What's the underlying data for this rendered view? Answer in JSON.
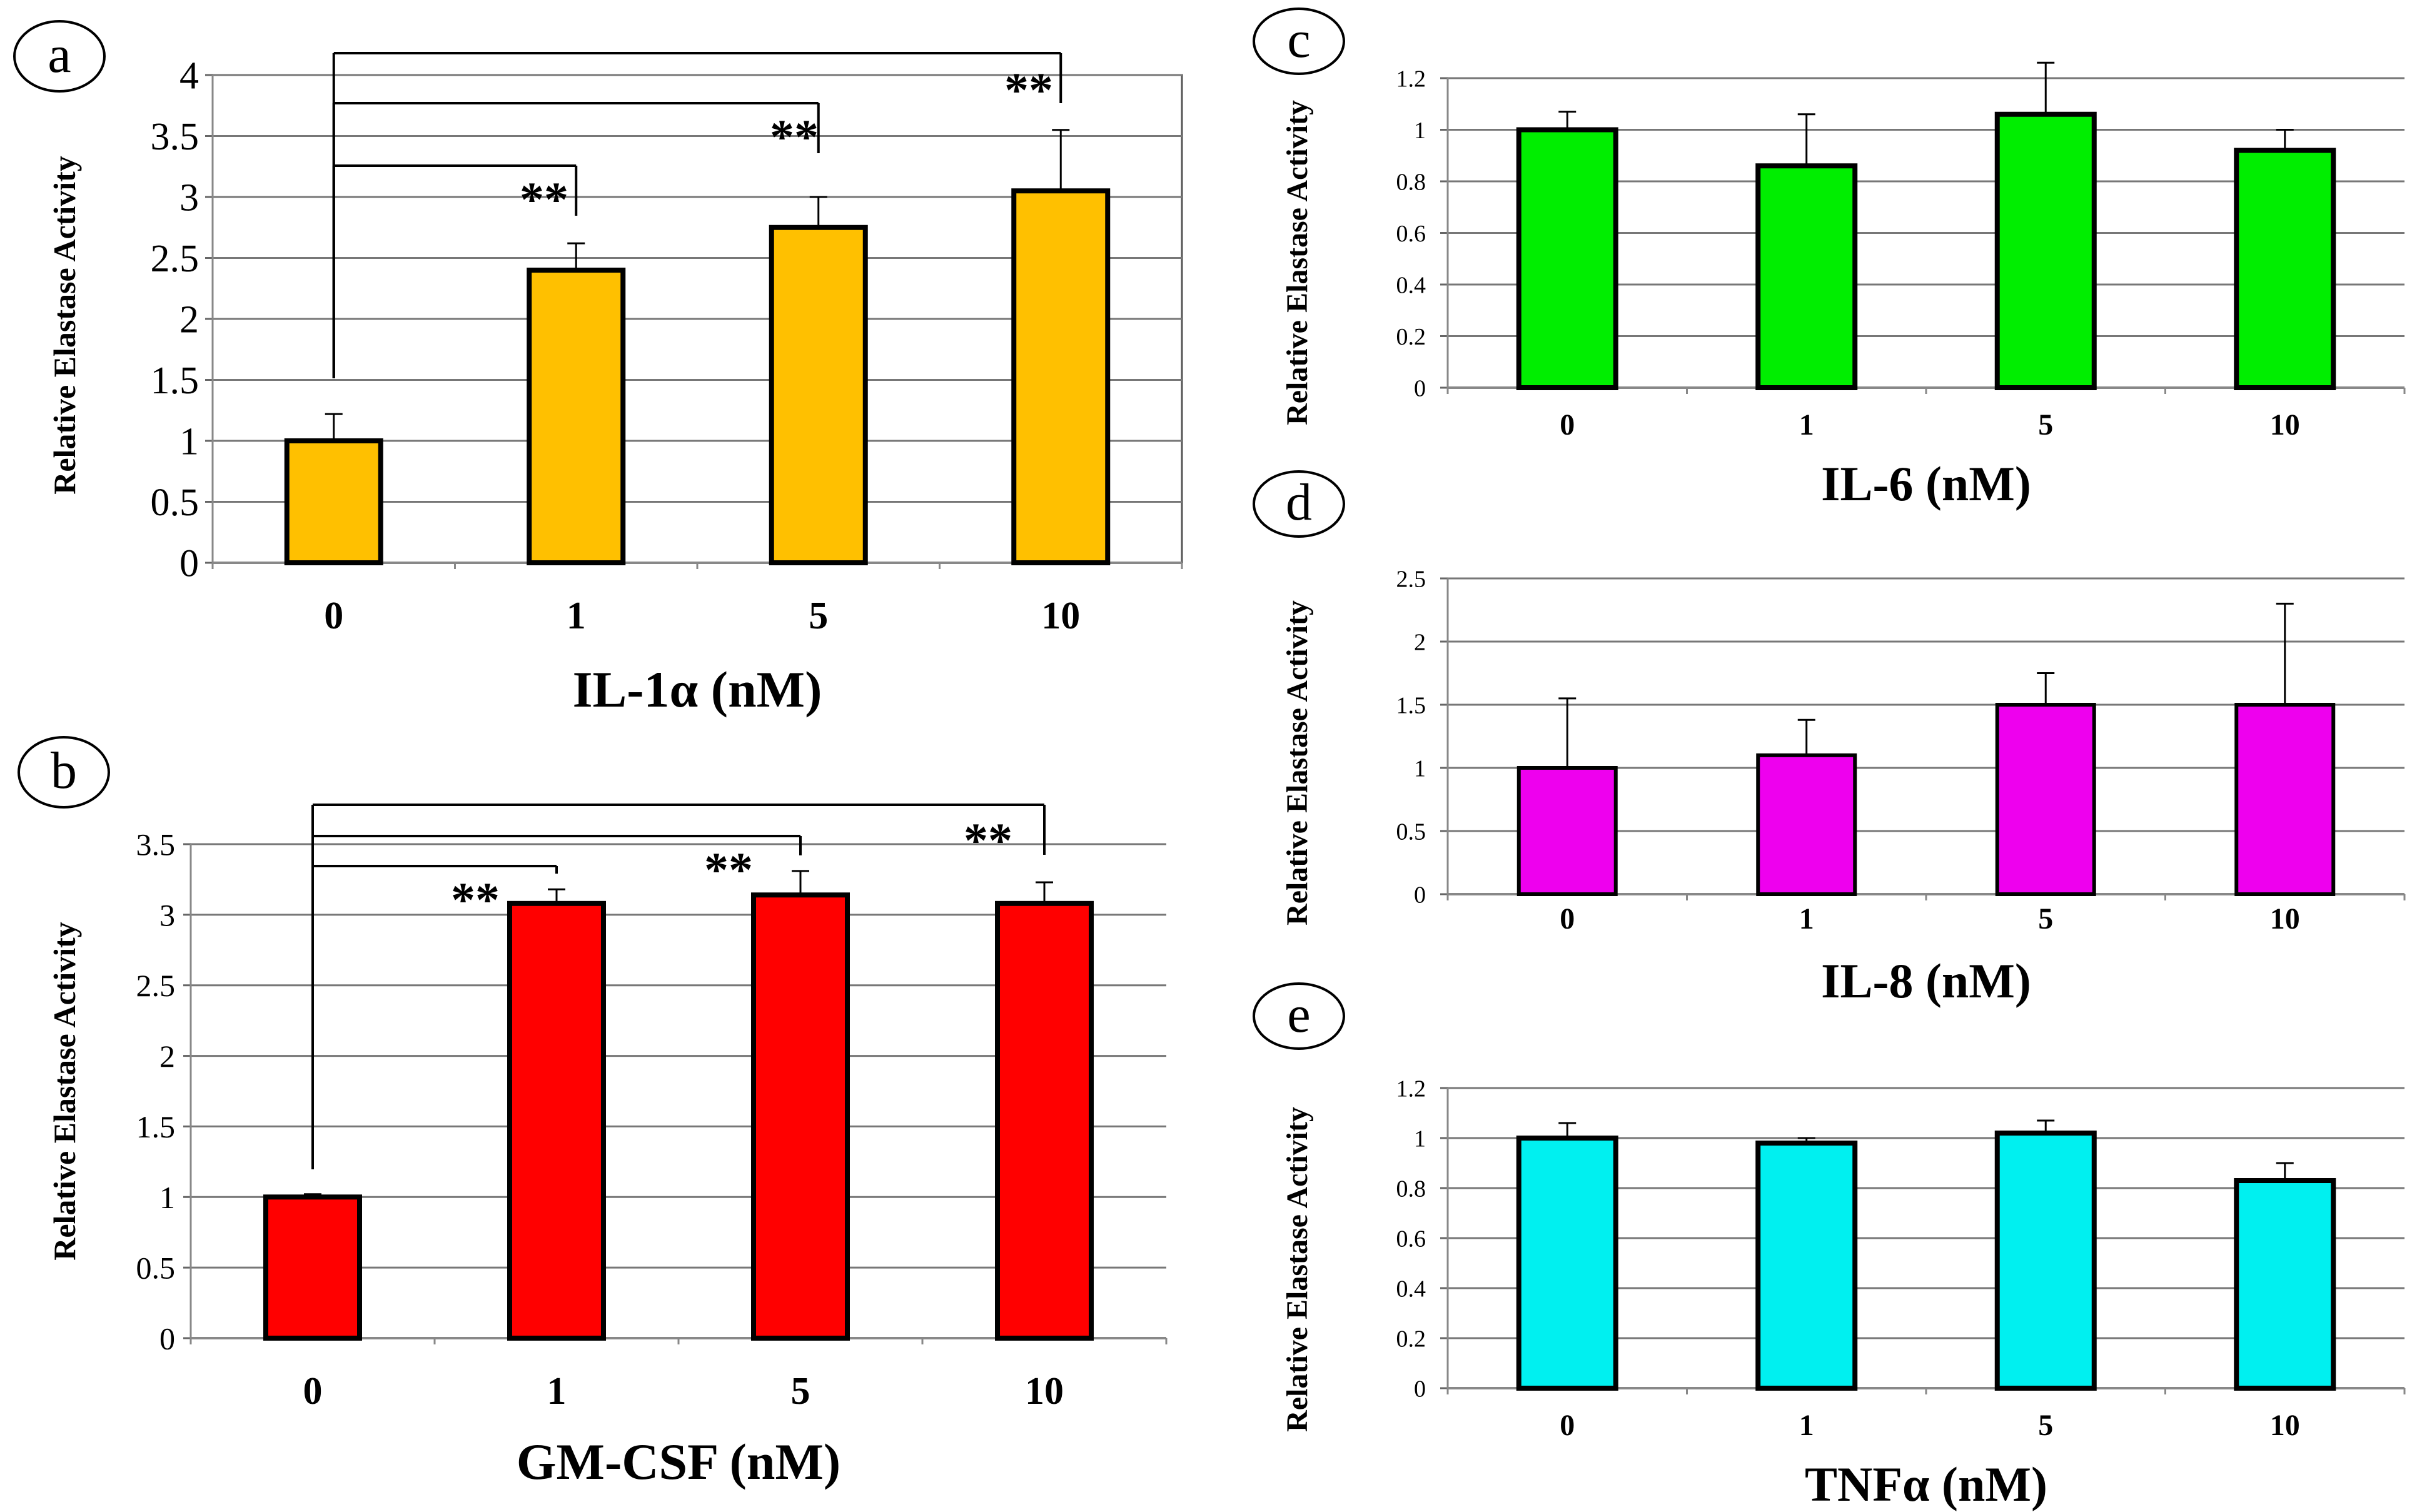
{
  "chart_data": [
    {
      "type": "bar",
      "panel_label": "a",
      "title": "",
      "xlabel": "IL-1α (nM)",
      "ylabel": "Relative Elastase Activity",
      "categories": [
        "0",
        "1",
        "5",
        "10"
      ],
      "values": [
        1.0,
        2.4,
        2.75,
        3.05
      ],
      "errors": [
        0.22,
        0.22,
        0.25,
        0.5
      ],
      "color": "#FFC000",
      "ylim": [
        0,
        4
      ],
      "yticks": [
        "0",
        "0.5",
        "1",
        "1.5",
        "2",
        "2.5",
        "3",
        "3.5",
        "4"
      ],
      "grid": true,
      "significance": [
        {
          "from": "0",
          "to": "1",
          "label": "**"
        },
        {
          "from": "0",
          "to": "5",
          "label": "**"
        },
        {
          "from": "0",
          "to": "10",
          "label": "**"
        }
      ]
    },
    {
      "type": "bar",
      "panel_label": "b",
      "title": "",
      "xlabel": "GM-CSF (nM)",
      "ylabel": "Relative Elastase Activity",
      "categories": [
        "0",
        "1",
        "5",
        "10"
      ],
      "values": [
        1.0,
        3.08,
        3.14,
        3.08
      ],
      "errors": [
        0.02,
        0.1,
        0.17,
        0.15
      ],
      "color": "#FF0000",
      "ylim": [
        0,
        3.5
      ],
      "yticks": [
        "0",
        "0.5",
        "1",
        "1.5",
        "2",
        "2.5",
        "3",
        "3.5"
      ],
      "grid": true,
      "significance": [
        {
          "from": "0",
          "to": "1",
          "label": "**"
        },
        {
          "from": "0",
          "to": "5",
          "label": "**"
        },
        {
          "from": "0",
          "to": "10",
          "label": "**"
        }
      ]
    },
    {
      "type": "bar",
      "panel_label": "c",
      "title": "",
      "xlabel": "IL-6 (nM)",
      "ylabel": "Relative Elastase Activity",
      "categories": [
        "0",
        "1",
        "5",
        "10"
      ],
      "values": [
        1.0,
        0.86,
        1.06,
        0.92
      ],
      "errors": [
        0.07,
        0.2,
        0.2,
        0.08
      ],
      "color": "#00EE00",
      "ylim": [
        0,
        1.2
      ],
      "yticks": [
        "0",
        "0.2",
        "0.4",
        "0.6",
        "0.8",
        "1",
        "1.2"
      ],
      "grid": true,
      "significance": []
    },
    {
      "type": "bar",
      "panel_label": "d",
      "title": "",
      "xlabel": "IL-8 (nM)",
      "ylabel": "Relative Elastase Activity",
      "categories": [
        "0",
        "1",
        "5",
        "10"
      ],
      "values": [
        1.0,
        1.1,
        1.5,
        1.5
      ],
      "errors": [
        0.55,
        0.28,
        0.25,
        0.8
      ],
      "color": "#EE00EE",
      "ylim": [
        0,
        2.5
      ],
      "yticks": [
        "0",
        "0.5",
        "1",
        "1.5",
        "2",
        "2.5"
      ],
      "grid": true,
      "significance": []
    },
    {
      "type": "bar",
      "panel_label": "e",
      "title": "",
      "xlabel": "TNFα (nM)",
      "ylabel": "Relative Elastase Activity",
      "categories": [
        "0",
        "1",
        "5",
        "10"
      ],
      "values": [
        1.0,
        0.98,
        1.02,
        0.83
      ],
      "errors": [
        0.06,
        0.02,
        0.05,
        0.07
      ],
      "color": "#00F0F0",
      "ylim": [
        0,
        1.2
      ],
      "yticks": [
        "0",
        "0.2",
        "0.4",
        "0.6",
        "0.8",
        "1",
        "1.2"
      ],
      "grid": true,
      "significance": []
    }
  ]
}
